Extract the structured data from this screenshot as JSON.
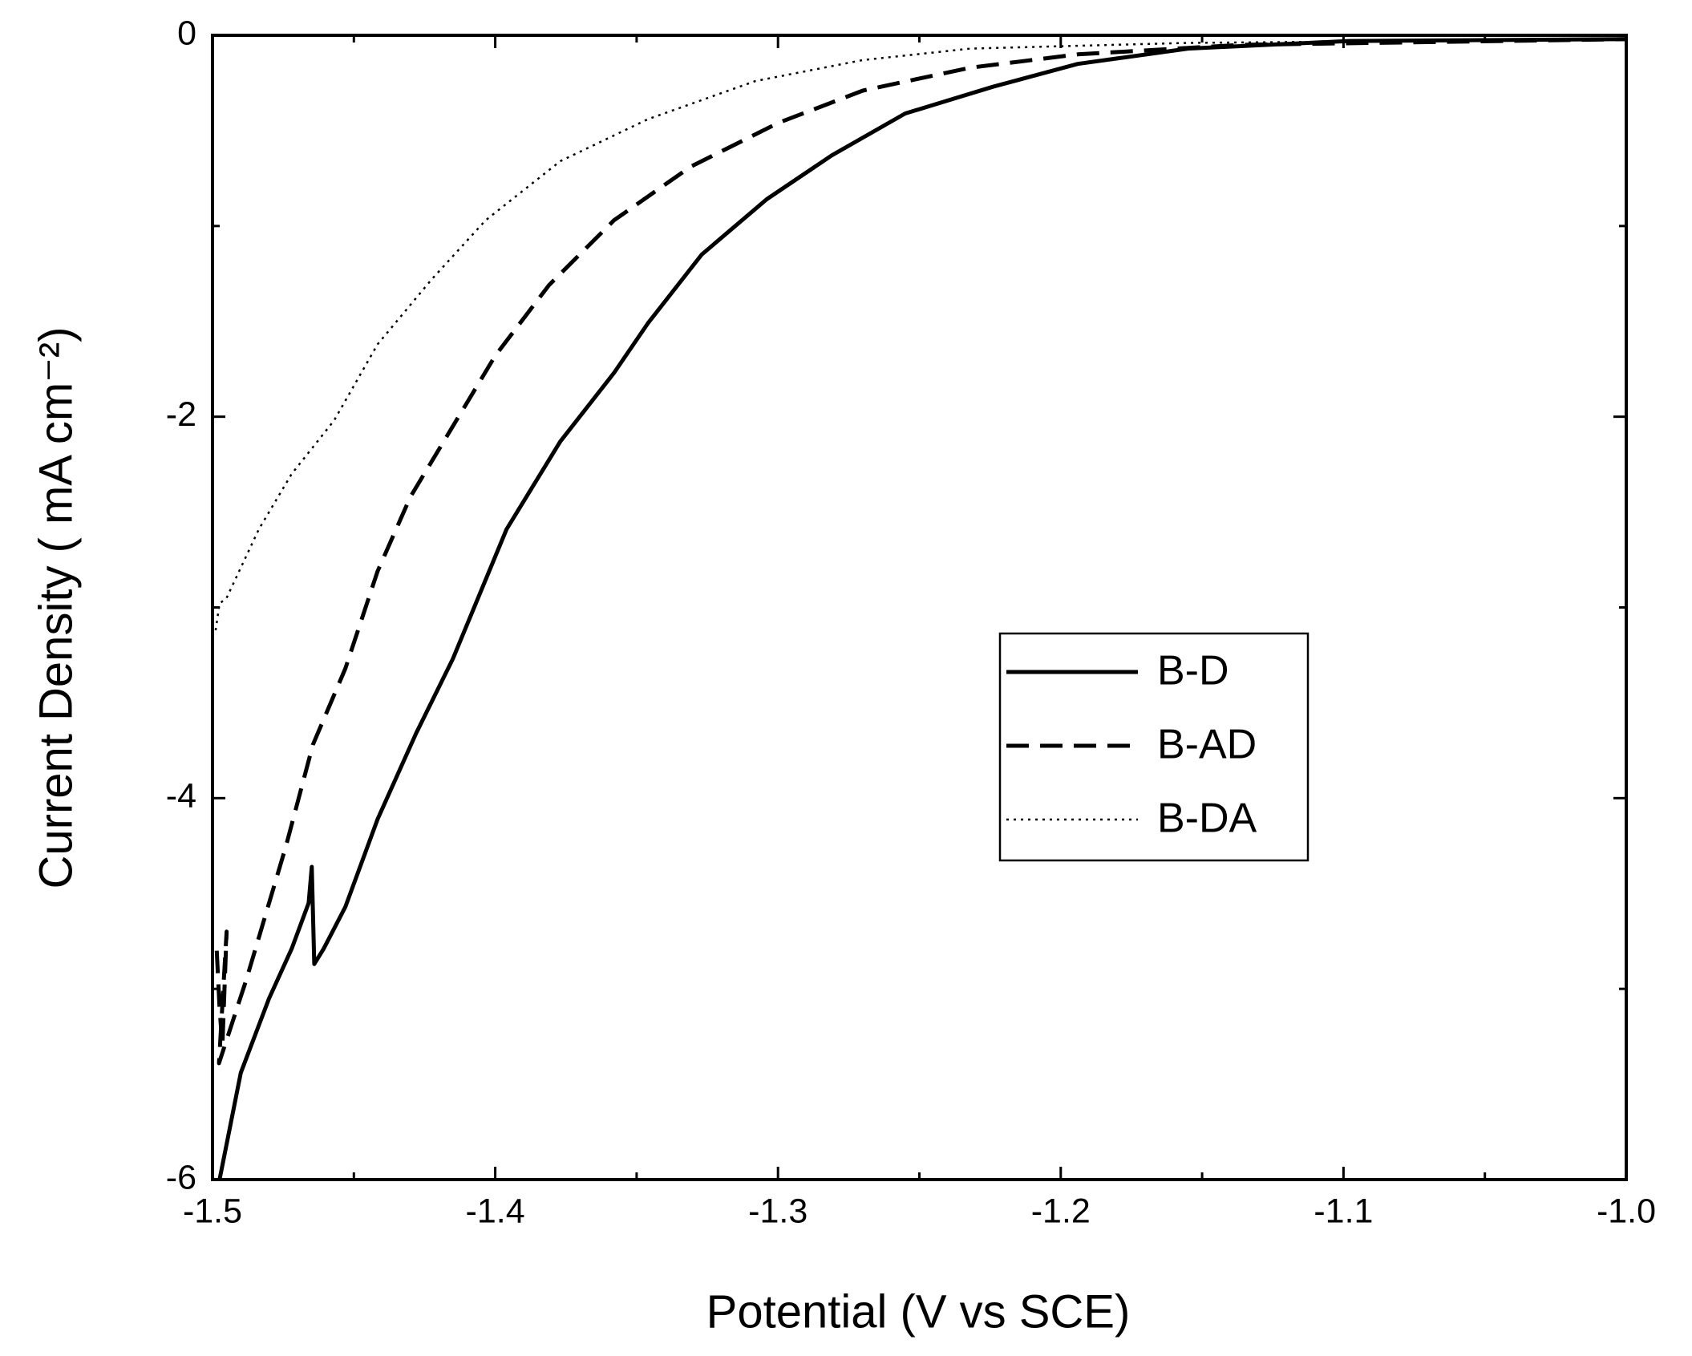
{
  "chart_data": {
    "type": "line",
    "x_label": "Potential (V vs SCE)",
    "y_label": "Current Density ( mA cm⁻²)",
    "xlim": [
      -1.5,
      -1.0
    ],
    "ylim": [
      -6,
      0
    ],
    "xticks": [
      -1.5,
      -1.4,
      -1.3,
      -1.2,
      -1.1,
      {
        "value": -1,
        "label": "-1.0"
      }
    ],
    "yticks": [
      0,
      -2,
      -4,
      -6
    ],
    "xminorticks": [
      -1.45,
      -1.35,
      -1.25,
      -1.15,
      -1.05
    ],
    "yminorticks": [
      -1,
      -3,
      -5
    ],
    "legend": "right",
    "series": [
      {
        "name": "B-D",
        "color": "#000000",
        "style": "solid",
        "x": [
          -1.4975,
          -1.49,
          -1.48,
          -1.472,
          -1.466,
          -1.4649,
          -1.464,
          -1.4607,
          -1.453,
          -1.4416,
          -1.428,
          -1.415,
          -1.396,
          -1.377,
          -1.358,
          -1.346,
          -1.327,
          -1.304,
          -1.281,
          -1.255,
          -1.224,
          -1.194,
          -1.155,
          -1.098,
          -1.0
        ],
        "values": [
          -6.0,
          -5.44,
          -5.05,
          -4.79,
          -4.55,
          -4.36,
          -4.87,
          -4.79,
          -4.57,
          -4.11,
          -3.66,
          -3.27,
          -2.59,
          -2.13,
          -1.77,
          -1.51,
          -1.15,
          -0.86,
          -0.63,
          -0.41,
          -0.27,
          -0.15,
          -0.07,
          -0.03,
          -0.02
        ]
      },
      {
        "name": "B-AD",
        "color": "#000000",
        "style": "dashed",
        "x": [
          -1.4985,
          -1.4975,
          -1.4965,
          -1.495,
          -1.4977,
          -1.488,
          -1.474,
          -1.4645,
          -1.453,
          -1.4416,
          -1.43,
          -1.415,
          -1.4,
          -1.381,
          -1.358,
          -1.331,
          -1.3,
          -1.27,
          -1.232,
          -1.194,
          -1.136,
          -1.0
        ],
        "values": [
          -4.8,
          -5.1,
          -5.3,
          -4.7,
          -5.39,
          -4.95,
          -4.25,
          -3.72,
          -3.32,
          -2.81,
          -2.42,
          -2.05,
          -1.68,
          -1.31,
          -0.97,
          -0.69,
          -0.46,
          -0.29,
          -0.17,
          -0.1,
          -0.05,
          -0.02
        ]
      },
      {
        "name": "B-DA",
        "color": "#000000",
        "style": "dotted",
        "x": [
          -1.4989,
          -1.4975,
          -1.495,
          -1.4836,
          -1.472,
          -1.457,
          -1.4416,
          -1.4225,
          -1.4034,
          -1.377,
          -1.346,
          -1.308,
          -1.27,
          -1.232,
          -1.155,
          -1.0
        ],
        "values": [
          -3.12,
          -2.98,
          -2.95,
          -2.59,
          -2.3,
          -2.02,
          -1.62,
          -1.28,
          -0.97,
          -0.66,
          -0.44,
          -0.24,
          -0.13,
          -0.07,
          -0.04,
          -0.02
        ]
      }
    ]
  }
}
